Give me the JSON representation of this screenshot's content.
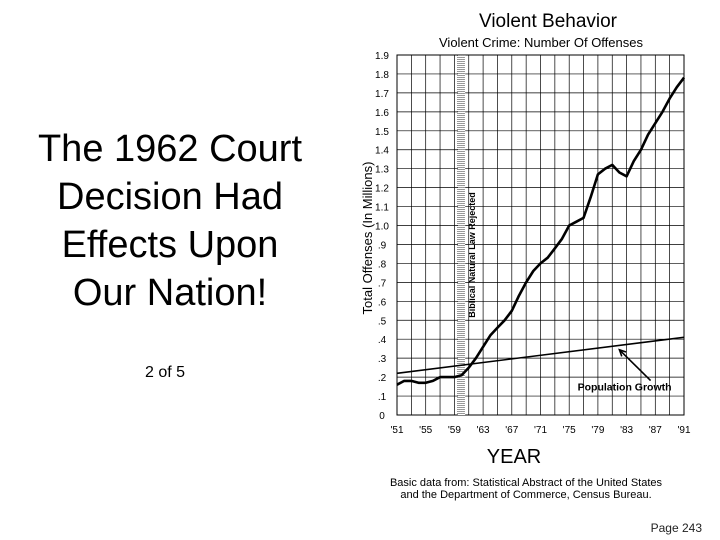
{
  "slide": {
    "heading_lines": [
      "The 1962 Court",
      "Decision Had",
      "Effects Upon",
      "Our Nation!"
    ],
    "counter": "2 of 5",
    "page_number": "Page 243"
  },
  "chart_data": {
    "type": "line",
    "title": "Violent Behavior",
    "subtitle": "Violent Crime: Number Of Offenses",
    "ylabel": "Total Offenses  (In Millions)",
    "xlabel": "YEAR",
    "ylim": [
      0,
      1.9
    ],
    "x_tick_labels": [
      "'51",
      "'55",
      "'59",
      "'63",
      "'67",
      "'71",
      "'75",
      "'79",
      "'83",
      "'87",
      "'91"
    ],
    "x_ticks": [
      1951,
      1955,
      1959,
      1963,
      1967,
      1971,
      1975,
      1979,
      1983,
      1987,
      1991
    ],
    "y_ticks": [
      0,
      0.1,
      0.2,
      0.3,
      0.4,
      0.5,
      0.6,
      0.7,
      0.8,
      0.9,
      1.0,
      1.1,
      1.2,
      1.3,
      1.4,
      1.5,
      1.6,
      1.7,
      1.8,
      1.9
    ],
    "y_tick_labels": [
      "0",
      ".1",
      ".2",
      ".3",
      ".4",
      ".5",
      ".6",
      ".7",
      ".8",
      ".9",
      "1.0",
      "1.1",
      "1.2",
      "1.3",
      "1.4",
      "1.5",
      "1.6",
      "1.7",
      "1.8",
      "1.9"
    ],
    "grid": true,
    "marker": {
      "x_from": 1959.5,
      "x_to": 1960.5,
      "label": "Biblical Natural Law Rejected"
    },
    "series": [
      {
        "name": "",
        "color": "#000000",
        "x": [
          1951,
          1952,
          1953,
          1954,
          1955,
          1956,
          1957,
          1958,
          1959,
          1960,
          1961,
          1962,
          1963,
          1964,
          1965,
          1966,
          1967,
          1968,
          1969,
          1970,
          1971,
          1972,
          1973,
          1974,
          1975,
          1976,
          1977,
          1978,
          1979,
          1980,
          1981,
          1982,
          1983,
          1984,
          1985,
          1986,
          1987,
          1988,
          1989,
          1990,
          1991
        ],
        "y": [
          0.16,
          0.18,
          0.18,
          0.17,
          0.17,
          0.18,
          0.2,
          0.2,
          0.2,
          0.21,
          0.25,
          0.3,
          0.36,
          0.42,
          0.46,
          0.5,
          0.55,
          0.63,
          0.7,
          0.76,
          0.8,
          0.83,
          0.88,
          0.93,
          1.0,
          1.02,
          1.04,
          1.15,
          1.27,
          1.3,
          1.32,
          1.28,
          1.26,
          1.34,
          1.4,
          1.48,
          1.54,
          1.6,
          1.67,
          1.73,
          1.78
        ]
      },
      {
        "name": "Population Growth",
        "color": "#000000",
        "x": [
          1951,
          1991
        ],
        "y": [
          0.22,
          0.41
        ]
      }
    ],
    "annotations": [
      {
        "text": "Population Growth",
        "x": 1983,
        "y": 0.15,
        "arrow_to_x": 1982,
        "arrow_to_y": 0.36
      }
    ],
    "source_line1": "Basic data from: Statistical Abstract of the United States",
    "source_line2": "and the Department of Commerce, Census Bureau."
  }
}
